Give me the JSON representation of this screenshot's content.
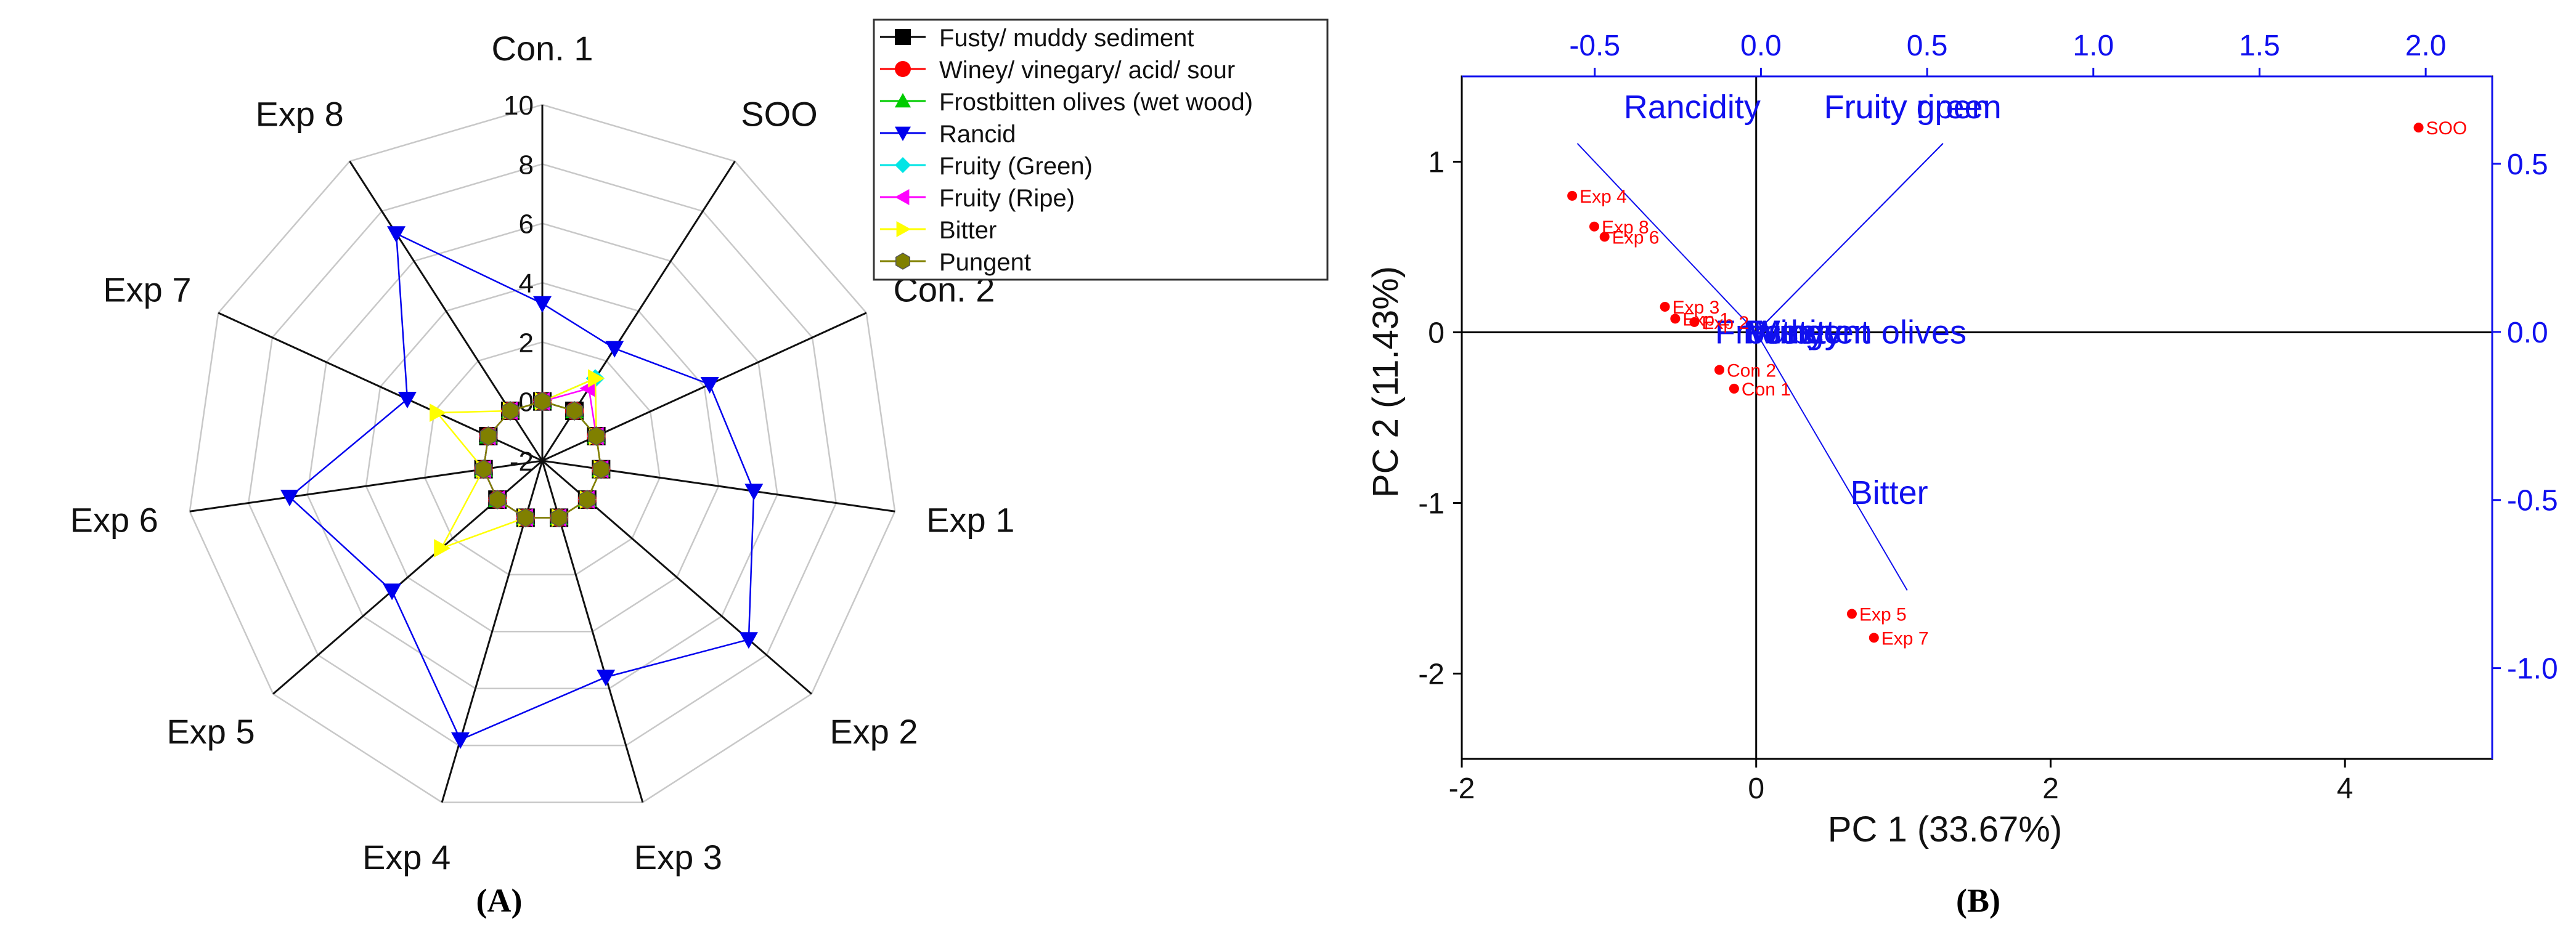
{
  "chart_data": [
    {
      "type": "radar",
      "panel_label": "(A)",
      "axes": [
        "Con. 1",
        "SOO",
        "Con. 2",
        "Exp 1",
        "Exp 2",
        "Exp 3",
        "Exp 4",
        "Exp 5",
        "Exp 6",
        "Exp 7",
        "Exp 8"
      ],
      "rlim": [
        -2,
        10
      ],
      "r_ticks": [
        -2,
        0,
        2,
        4,
        6,
        8,
        10
      ],
      "grid": true,
      "legend_position": "top-right",
      "colors": {
        "Fusty/ muddy sediment": "#000000",
        "Winey/ vinegary/ acid/ sour": "#ff0000",
        "Frostbitten olives (wet wood)": "#00cc00",
        "Rancid": "#0000ee",
        "Fruity (Green)": "#00e5e5",
        "Fruity (Ripe)": "#ff00ff",
        "Bitter": "#ffff00",
        "Pungent": "#808000"
      },
      "series": [
        {
          "name": "Fusty/ muddy sediment",
          "values": [
            0,
            0,
            0,
            0,
            0,
            0,
            0,
            0,
            0,
            0,
            0
          ]
        },
        {
          "name": "Winey/ vinegary/ acid/ sour",
          "values": [
            0,
            0,
            0,
            0,
            0,
            0,
            0,
            0,
            0,
            0,
            0
          ]
        },
        {
          "name": "Frostbitten olives (wet wood)",
          "values": [
            0,
            0,
            0,
            0,
            0,
            0,
            0,
            0,
            0,
            0,
            0
          ]
        },
        {
          "name": "Rancid",
          "values": [
            3.3,
            2.5,
            4.2,
            5.2,
            7.2,
            5.6,
            7.8,
            4.7,
            6.6,
            3.0,
            7.1
          ]
        },
        {
          "name": "Fruity (Green)",
          "values": [
            0,
            1.3,
            0,
            0,
            0,
            0,
            0,
            0,
            0,
            0,
            0
          ]
        },
        {
          "name": "Fruity (Ripe)",
          "values": [
            0,
            0.9,
            0,
            0,
            0,
            0,
            0,
            0,
            0,
            0,
            0
          ]
        },
        {
          "name": "Bitter",
          "values": [
            0,
            1.3,
            0,
            0,
            0,
            0,
            0,
            2.5,
            0,
            1.9,
            0
          ]
        },
        {
          "name": "Pungent",
          "values": [
            0,
            0,
            0,
            0,
            0,
            0,
            0,
            0,
            0,
            0,
            0
          ]
        }
      ]
    },
    {
      "type": "biplot",
      "panel_label": "(B)",
      "xlabel": "PC 1 (33.67%)",
      "ylabel": "PC 2 (11.43%)",
      "xlim": [
        -2,
        5
      ],
      "ylim": [
        -2.5,
        1.5
      ],
      "x_ticks": [
        -2,
        0,
        2,
        4
      ],
      "y_ticks": [
        -2,
        -1,
        0,
        1
      ],
      "top_xlim": [
        -0.9,
        2.2
      ],
      "top_ticks": [
        "-0.5",
        "0.0",
        "0.5",
        "1.0",
        "1.5",
        "2.0"
      ],
      "right_ylim": [
        -1.27,
        0.76
      ],
      "right_ticks": [
        "-1.0",
        "-0.5",
        "0.0",
        "0.5"
      ],
      "colors": {
        "points": "#ff0000",
        "loadings": "#1010ee"
      },
      "scores": [
        {
          "label": "SOO",
          "x": 4.5,
          "y": 1.2
        },
        {
          "label": "Exp 4",
          "x": -1.25,
          "y": 0.8
        },
        {
          "label": "Exp 8",
          "x": -1.1,
          "y": 0.62
        },
        {
          "label": "Exp 6",
          "x": -1.03,
          "y": 0.56
        },
        {
          "label": "Exp 3",
          "x": -0.62,
          "y": 0.15
        },
        {
          "label": "Exp 1",
          "x": -0.55,
          "y": 0.08
        },
        {
          "label": "Exp 2",
          "x": -0.42,
          "y": 0.06
        },
        {
          "label": "Con 2",
          "x": -0.25,
          "y": -0.22
        },
        {
          "label": "Con 1",
          "x": -0.15,
          "y": -0.33
        },
        {
          "label": "Exp 5",
          "x": 0.65,
          "y": -1.65
        },
        {
          "label": "Exp 7",
          "x": 0.8,
          "y": -1.79
        }
      ],
      "loadings": [
        {
          "label": "Rancidity",
          "x": -0.45,
          "y": 0.41
        },
        {
          "label": "Fruity green",
          "x": 0.47,
          "y": 0.41
        },
        {
          "label": "Fruity ripen",
          "x": 0.47,
          "y": 0.41
        },
        {
          "label": "Bitter",
          "x": 0.38,
          "y": -0.56
        },
        {
          "label": "Frostbitten olives",
          "x": 0.0,
          "y": 0.0
        },
        {
          "label": "Pungent",
          "x": 0.0,
          "y": 0.0
        },
        {
          "label": "Musty",
          "x": 0.0,
          "y": 0.0
        },
        {
          "label": "Winey",
          "x": 0.0,
          "y": 0.0
        },
        {
          "label": "Fusty",
          "x": 0.0,
          "y": 0.0
        }
      ],
      "loading_label_pos": {
        "Rancidity": [
          -0.9,
          1.32
        ],
        "Fruity green": [
          0.46,
          1.32
        ],
        "Fruity ripen": [
          0.46,
          1.32
        ],
        "Bitter": [
          0.64,
          -0.94
        ],
        "Frostbitten olives": [
          -0.28,
          0.0
        ],
        "Pungent": [
          -0.07,
          0.0
        ],
        "Musty": [
          -0.02,
          0.0
        ],
        "Winey": [
          -0.05,
          0.0
        ],
        "Fusty": [
          -0.09,
          0.0
        ]
      }
    }
  ]
}
